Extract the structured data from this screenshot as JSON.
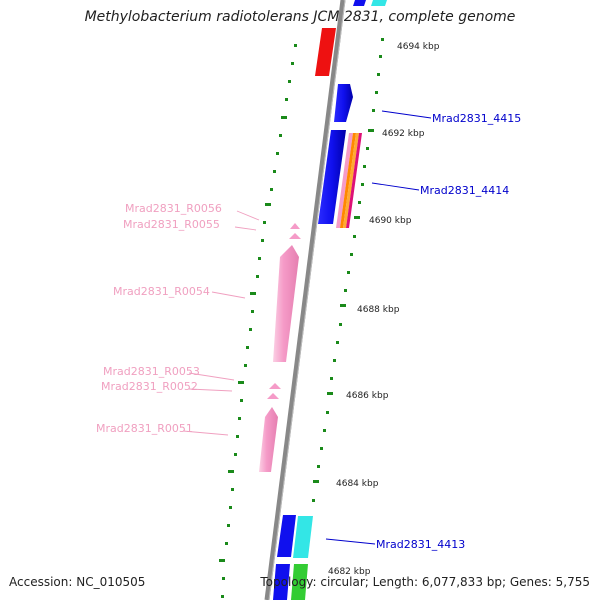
{
  "title": "Methylobacterium radiotolerans JCM 2831, complete genome",
  "footer": {
    "accession": "Accession: NC_010505",
    "topology": "Topology: circular; Length: 6,077,833 bp; Genes: 5,755"
  },
  "colors": {
    "backbone": "#888888",
    "tick_dots": "#1a8a1a",
    "cds_blue": "#1010ee",
    "cds_cyan": "#33e6e6",
    "cds_red": "#ee1111",
    "rna_pink": "#f59bc8",
    "cds_green": "#33cc33",
    "cds_orange": "#ff8800",
    "label_blue": "#0000cc",
    "label_pink": "#f0a0c0"
  },
  "scale_ticks": [
    "4694 kbp",
    "4692 kbp",
    "4690 kbp",
    "4688 kbp",
    "4686 kbp",
    "4684 kbp",
    "4682 kbp"
  ],
  "labels_right": [
    "Mrad2831_4415",
    "Mrad2831_4414",
    "Mrad2831_4413"
  ],
  "labels_left": [
    "Mrad2831_R0056",
    "Mrad2831_R0055",
    "Mrad2831_R0054",
    "Mrad2831_R0053",
    "Mrad2831_R0052",
    "Mrad2831_R0051"
  ]
}
